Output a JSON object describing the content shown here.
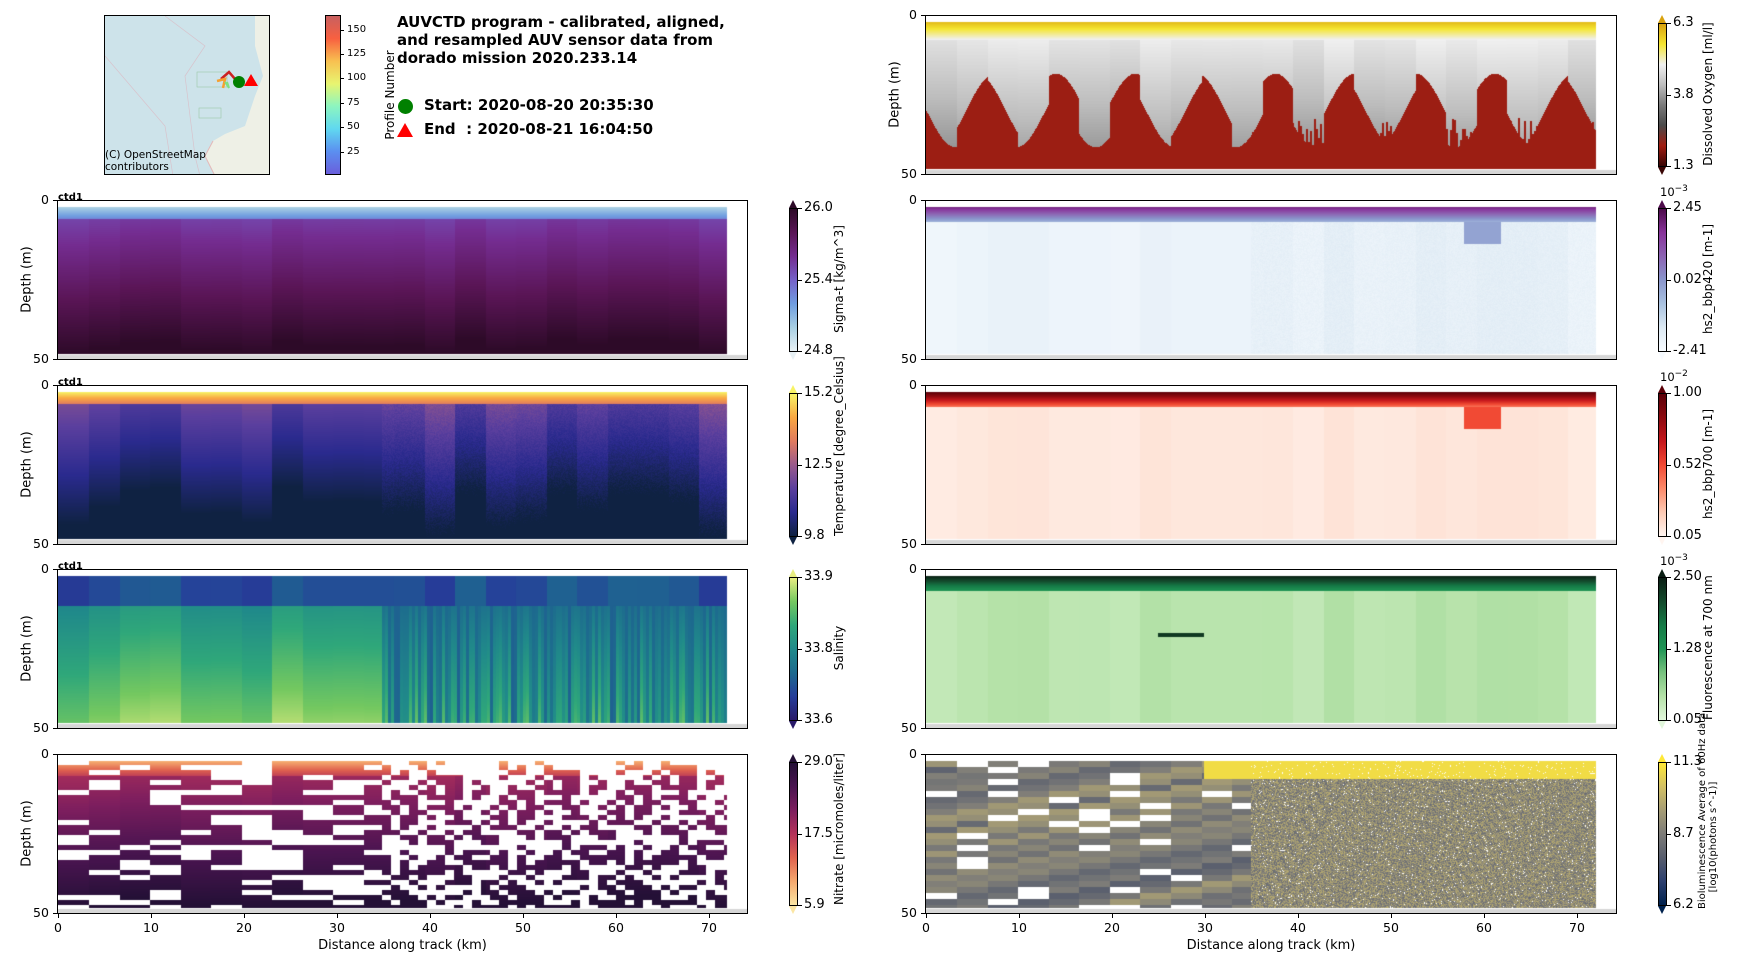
{
  "title": "AUVCTD program - calibrated, aligned,\nand resampled AUV sensor data from\ndorado mission 2020.233.14",
  "legend": {
    "start_label": "Start: 2020-08-20 20:35:30",
    "end_label": "End  : 2020-08-21 16:04:50",
    "start_color": "#008000",
    "end_color": "#ff0000"
  },
  "map": {
    "attribution_line1": "(C) OpenStreetMap",
    "attribution_line2": "contributors",
    "colorbar": {
      "label": "Profile Number",
      "ticks": [
        "25",
        "50",
        "75",
        "100",
        "125",
        "150"
      ],
      "tick_values": [
        25,
        50,
        75,
        100,
        125,
        150
      ],
      "range": [
        1,
        165
      ]
    }
  },
  "chart_data": [
    {
      "type": "heatmap",
      "panel": "left-1",
      "variable": "Sigma-t",
      "annotation": "ctd1",
      "ylabel": "Depth (m)",
      "xlabel": "",
      "ylim": [
        50,
        0
      ],
      "xlim": [
        0,
        74.5
      ],
      "yticks": [
        "0",
        "50"
      ],
      "xticks": [],
      "colorbar": {
        "label": "Sigma-t [kg/m^3]",
        "ticks": [
          "26.0",
          "25.4",
          "24.8"
        ],
        "range": [
          24.8,
          26.0
        ],
        "exponent": "",
        "colors": [
          "#e8f1f5",
          "#a8cfe3",
          "#6f9de0",
          "#7561c8",
          "#742c90",
          "#5a1556",
          "#2d0a28"
        ]
      }
    },
    {
      "type": "heatmap",
      "panel": "left-2",
      "variable": "Temperature",
      "annotation": "ctd1",
      "ylabel": "Depth (m)",
      "xlabel": "",
      "ylim": [
        50,
        0
      ],
      "xlim": [
        0,
        74.5
      ],
      "yticks": [
        "0",
        "50"
      ],
      "xticks": [],
      "colorbar": {
        "label": "Temperature [degree_Celsius]",
        "ticks": [
          "15.2",
          "12.5",
          "9.8"
        ],
        "range": [
          9.8,
          15.2
        ],
        "exponent": "",
        "colors": [
          "#0f2242",
          "#2a2a8e",
          "#5b3f9e",
          "#9a5a8c",
          "#e07a5f",
          "#f9a742",
          "#f7f366"
        ]
      }
    },
    {
      "type": "heatmap",
      "panel": "left-3",
      "variable": "Salinity",
      "annotation": "ctd1",
      "ylabel": "Depth (m)",
      "xlabel": "",
      "ylim": [
        50,
        0
      ],
      "xlim": [
        0,
        74.5
      ],
      "yticks": [
        "0",
        "50"
      ],
      "xticks": [],
      "colorbar": {
        "label": "Salinity",
        "ticks": [
          "33.9",
          "33.8",
          "33.6"
        ],
        "range": [
          33.6,
          33.9
        ],
        "exponent": "",
        "colors": [
          "#2a1a6a",
          "#263e9a",
          "#1d6a8e",
          "#208a8a",
          "#2fa77a",
          "#74c860",
          "#e8ee82"
        ]
      }
    },
    {
      "type": "heatmap",
      "panel": "left-4",
      "variable": "Nitrate",
      "annotation": "",
      "ylabel": "Depth (m)",
      "xlabel": "Distance along track (km)",
      "ylim": [
        50,
        0
      ],
      "xlim": [
        0,
        74.5
      ],
      "yticks": [
        "0",
        "50"
      ],
      "xticks": [
        "0",
        "10",
        "20",
        "30",
        "40",
        "50",
        "60",
        "70"
      ],
      "colorbar": {
        "label": "Nitrate [micromoles/liter]",
        "ticks": [
          "29.0",
          "17.5",
          "5.9"
        ],
        "range": [
          5.9,
          29.0
        ],
        "exponent": "",
        "colors": [
          "#fbe6a4",
          "#f5a96e",
          "#e0624e",
          "#b4325a",
          "#7d1e5e",
          "#4a1450",
          "#241036"
        ]
      }
    },
    {
      "type": "heatmap",
      "panel": "right-1",
      "variable": "Dissolved Oxygen",
      "annotation": "",
      "ylabel": "Depth (m)",
      "xlabel": "",
      "ylim": [
        50,
        0
      ],
      "xlim": [
        0,
        74.5
      ],
      "yticks": [
        "0",
        "50"
      ],
      "xticks": [],
      "colorbar": {
        "label": "Dissolved Oxygen [ml/l]",
        "ticks": [
          "6.3",
          "3.8",
          "1.3"
        ],
        "range": [
          1.3,
          6.3
        ],
        "exponent": "",
        "colors": [
          "#3a0605",
          "#a01c10",
          "#4a4a4a",
          "#7a7a7a",
          "#bdbdbd",
          "#f0f0f0",
          "#f5e630",
          "#d9a20e"
        ]
      }
    },
    {
      "type": "heatmap",
      "panel": "right-2",
      "variable": "hs2_bbp420",
      "annotation": "",
      "ylabel": "",
      "xlabel": "",
      "ylim": [
        50,
        0
      ],
      "xlim": [
        0,
        74.5
      ],
      "yticks": [
        "0",
        "50"
      ],
      "xticks": [],
      "colorbar": {
        "label": "hs2_bbp420 [m-1]",
        "ticks": [
          "2.45",
          "0.02",
          "-2.41"
        ],
        "range": [
          -2.41,
          2.45
        ],
        "exponent": "-3",
        "colors": [
          "#f7fbff",
          "#dce9f3",
          "#a9c2e0",
          "#8a96cc",
          "#8c64b3",
          "#88339a",
          "#4d0b4b"
        ]
      }
    },
    {
      "type": "heatmap",
      "panel": "right-3",
      "variable": "hs2_bbp700",
      "annotation": "",
      "ylabel": "",
      "xlabel": "",
      "ylim": [
        50,
        0
      ],
      "xlim": [
        0,
        74.5
      ],
      "yticks": [
        "0",
        "50"
      ],
      "xticks": [],
      "colorbar": {
        "label": "hs2_bbp700 [m-1]",
        "ticks": [
          "1.00",
          "0.52",
          "0.05"
        ],
        "range": [
          0.05,
          1.0
        ],
        "exponent": "-2",
        "colors": [
          "#fff5f0",
          "#fdcab4",
          "#fc8a6a",
          "#f14a34",
          "#c5171c",
          "#8c0a10",
          "#5a0008"
        ]
      }
    },
    {
      "type": "heatmap",
      "panel": "right-4",
      "variable": "Fluorescence at 700 nm",
      "annotation": "",
      "ylabel": "",
      "xlabel": "",
      "ylim": [
        50,
        0
      ],
      "xlim": [
        0,
        74.5
      ],
      "yticks": [
        "0",
        "50"
      ],
      "xticks": [],
      "colorbar": {
        "label": "Fluorescence at 700 nm",
        "ticks": [
          "2.50",
          "1.28",
          "0.05"
        ],
        "range": [
          0.05,
          2.5
        ],
        "exponent": "-3",
        "colors": [
          "#e2f7dc",
          "#b5e2a8",
          "#78c27e",
          "#1f9454",
          "#157a46",
          "#134a2c",
          "#0b1f14"
        ]
      }
    },
    {
      "type": "heatmap",
      "panel": "right-5",
      "variable": "Bioluminescence",
      "annotation": "",
      "ylabel": "",
      "xlabel": "Distance along track (km)",
      "ylim": [
        50,
        0
      ],
      "xlim": [
        0,
        74.5
      ],
      "yticks": [
        "0",
        "50"
      ],
      "xticks": [
        "0",
        "10",
        "20",
        "30",
        "40",
        "50",
        "60",
        "70"
      ],
      "colorbar": {
        "label": "Bioluminescence Average of 60Hz data\n[log10(photons s^-1)]",
        "ticks": [
          "11.3",
          "8.7",
          "6.2"
        ],
        "range": [
          6.2,
          11.3
        ],
        "exponent": "",
        "colors": [
          "#00224e",
          "#2c3f6e",
          "#575d6d",
          "#7d7c78",
          "#a69d75",
          "#d3c164",
          "#fee838"
        ]
      }
    }
  ]
}
